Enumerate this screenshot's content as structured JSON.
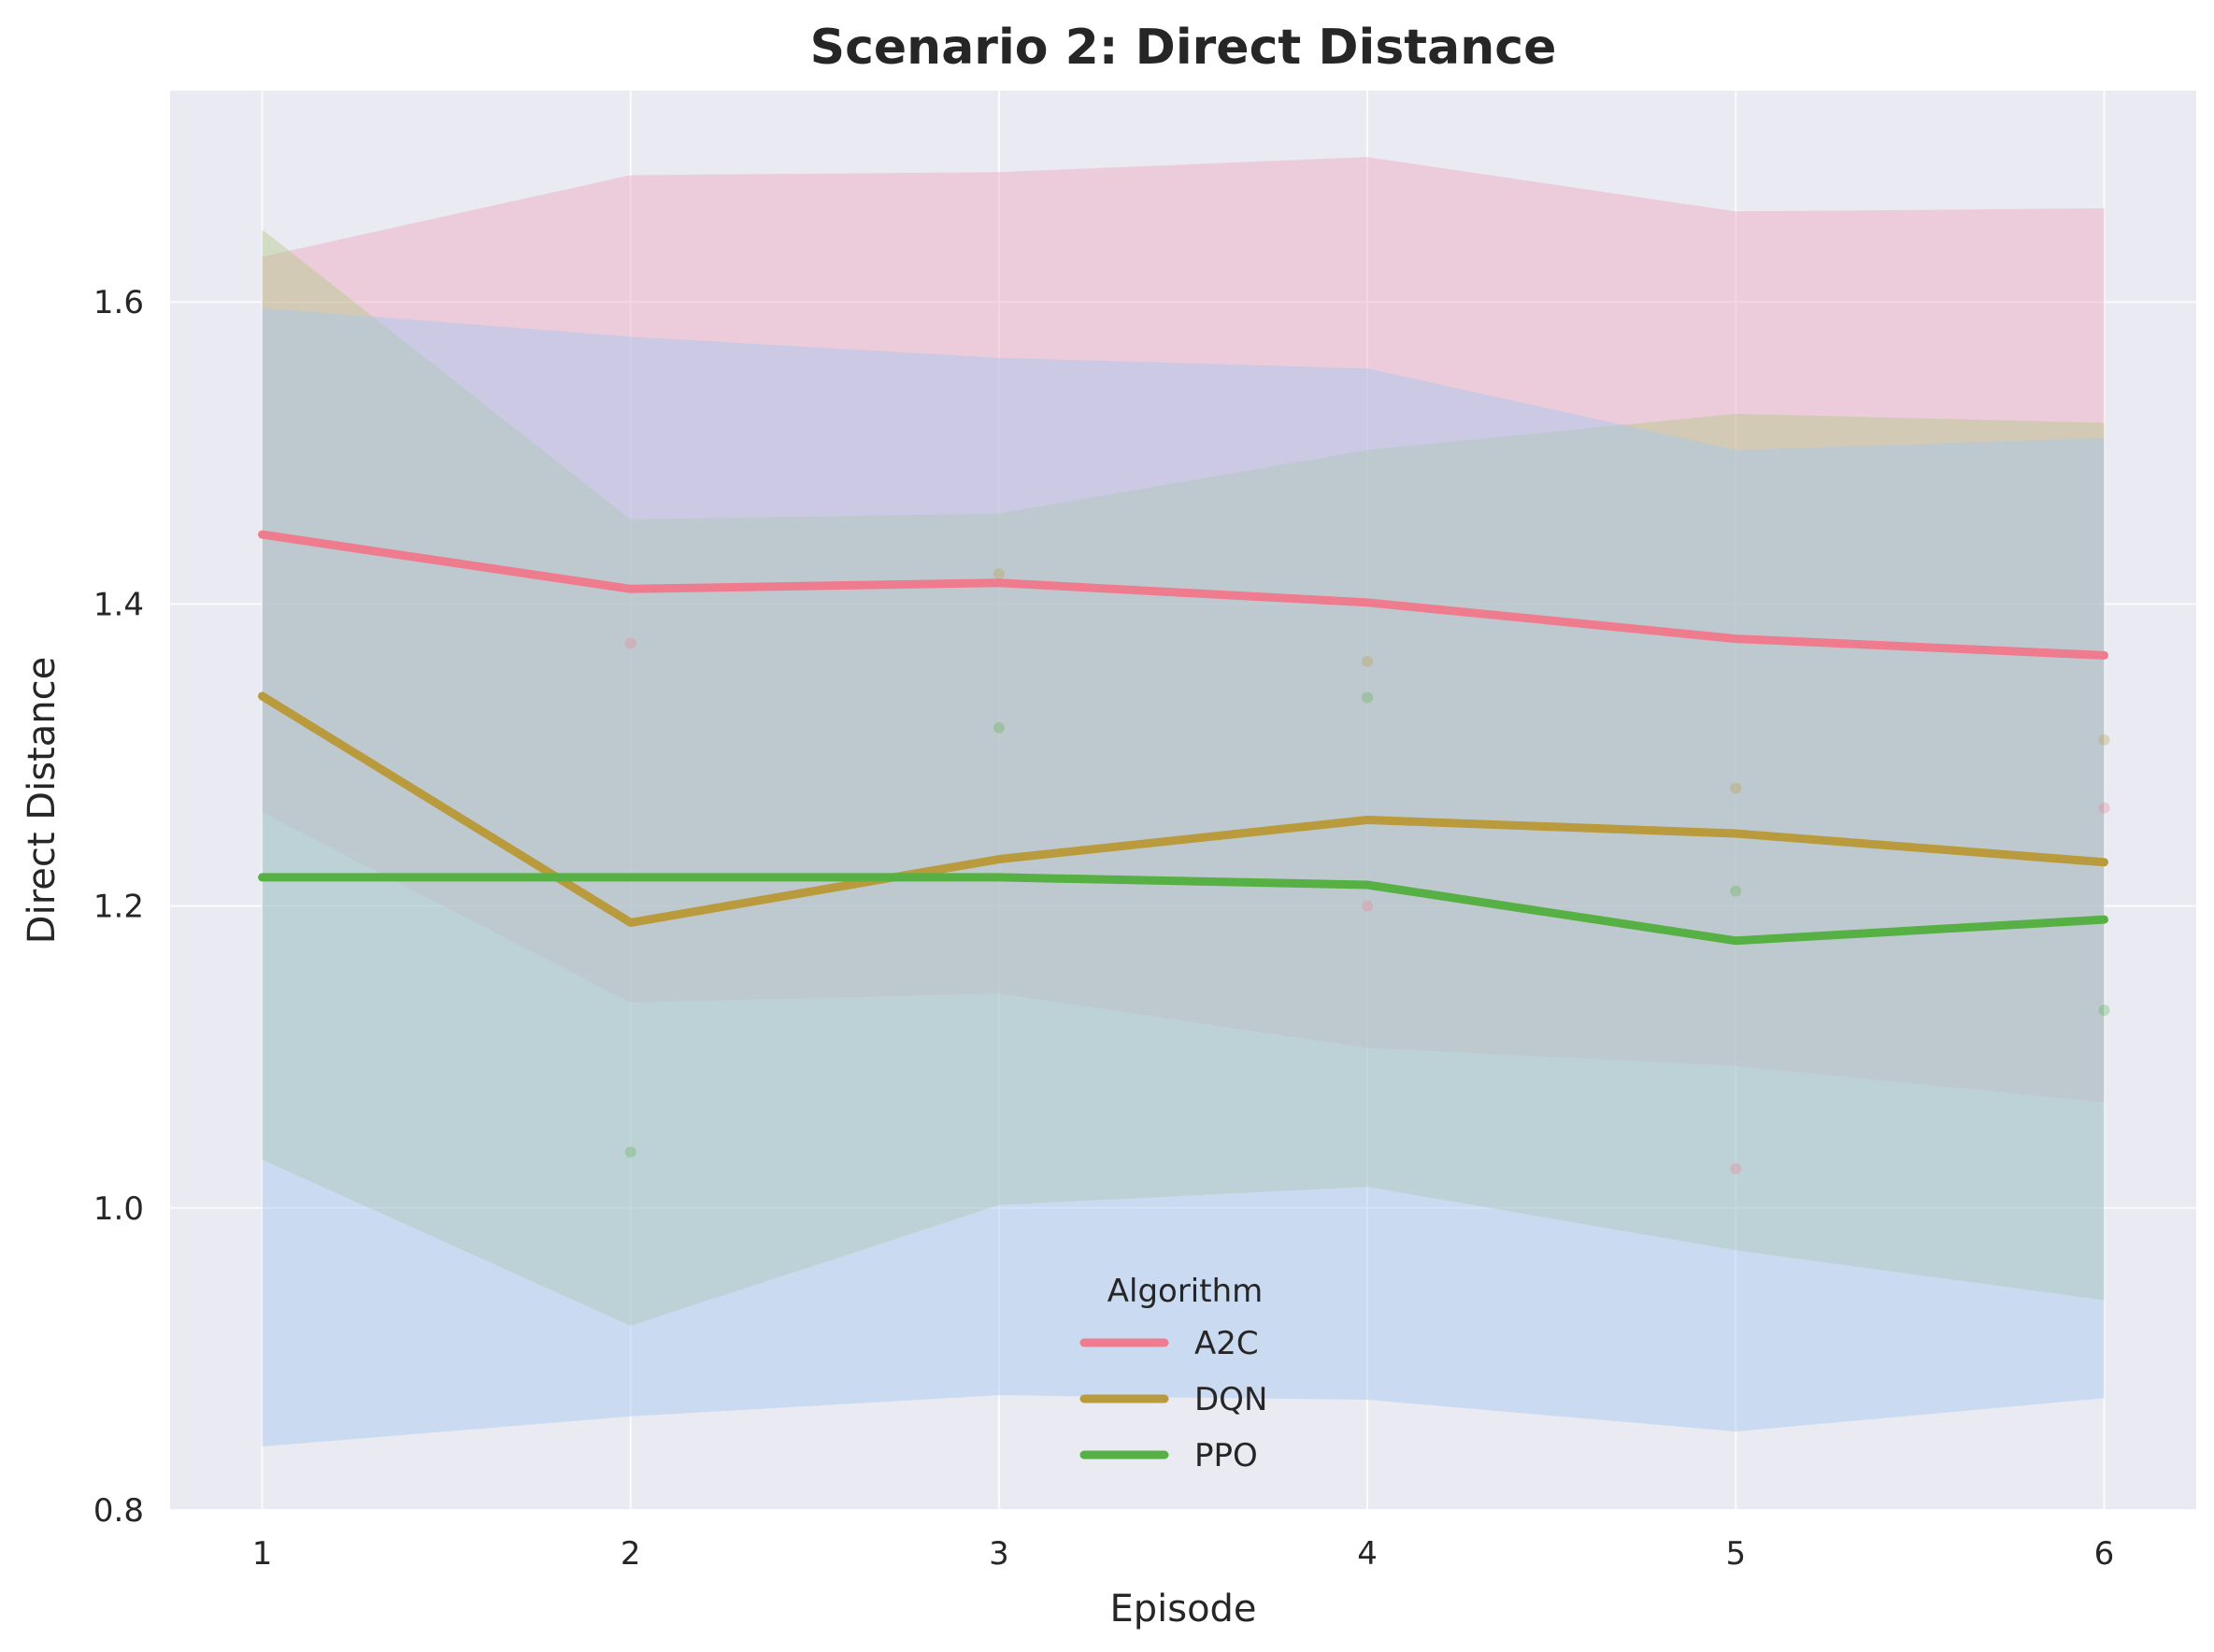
{
  "chart_data": {
    "type": "line",
    "title": "Scenario 2: Direct Distance",
    "xlabel": "Episode",
    "ylabel": "Direct Distance",
    "x": [
      1,
      2,
      3,
      4,
      5,
      6
    ],
    "x_ticks": [
      "1",
      "2",
      "3",
      "4",
      "5",
      "6"
    ],
    "xlim": [
      0.75,
      6.25
    ],
    "ylim": [
      0.8,
      1.74
    ],
    "y_ticks": [
      "0.8",
      "1.0",
      "1.2",
      "1.4",
      "1.6"
    ],
    "y_tick_values": [
      0.8,
      1.0,
      1.2,
      1.4,
      1.6
    ],
    "grid": true,
    "legend": {
      "title": "Algorithm",
      "placement": "lower center"
    },
    "series": [
      {
        "name": "A2C",
        "color": "#ef7b8e",
        "band_color": "#f0a7bf",
        "values": [
          1.446,
          1.41,
          1.414,
          1.401,
          1.377,
          1.366
        ],
        "upper": [
          1.63,
          1.684,
          1.686,
          1.696,
          1.66,
          1.662
        ],
        "lower": [
          1.262,
          1.136,
          1.142,
          1.106,
          1.094,
          1.07
        ],
        "points": [
          [
            2,
            1.374
          ],
          [
            4,
            1.2
          ],
          [
            5,
            1.026
          ],
          [
            6,
            1.265
          ]
        ]
      },
      {
        "name": "DQN",
        "color": "#b99a3c",
        "band_color": "#b5c98a",
        "values": [
          1.339,
          1.189,
          1.231,
          1.257,
          1.248,
          1.229
        ],
        "upper": [
          1.648,
          1.456,
          1.46,
          1.502,
          1.526,
          1.52
        ],
        "lower": [
          1.032,
          0.922,
          1.002,
          1.014,
          0.972,
          0.939
        ],
        "points": [
          [
            3,
            1.42
          ],
          [
            4,
            1.362
          ],
          [
            5,
            1.278
          ],
          [
            6,
            1.31
          ]
        ]
      },
      {
        "name": "PPO",
        "color": "#57b043",
        "band_color": "#a3c7ee",
        "values": [
          1.219,
          1.219,
          1.219,
          1.214,
          1.177,
          1.191
        ],
        "upper": [
          1.596,
          1.577,
          1.563,
          1.556,
          1.502,
          1.51
        ],
        "lower": [
          0.842,
          0.862,
          0.876,
          0.873,
          0.852,
          0.874
        ],
        "points": [
          [
            2,
            1.037
          ],
          [
            3,
            1.318
          ],
          [
            4,
            1.338
          ],
          [
            5,
            1.21
          ],
          [
            6,
            1.131
          ]
        ]
      }
    ]
  }
}
